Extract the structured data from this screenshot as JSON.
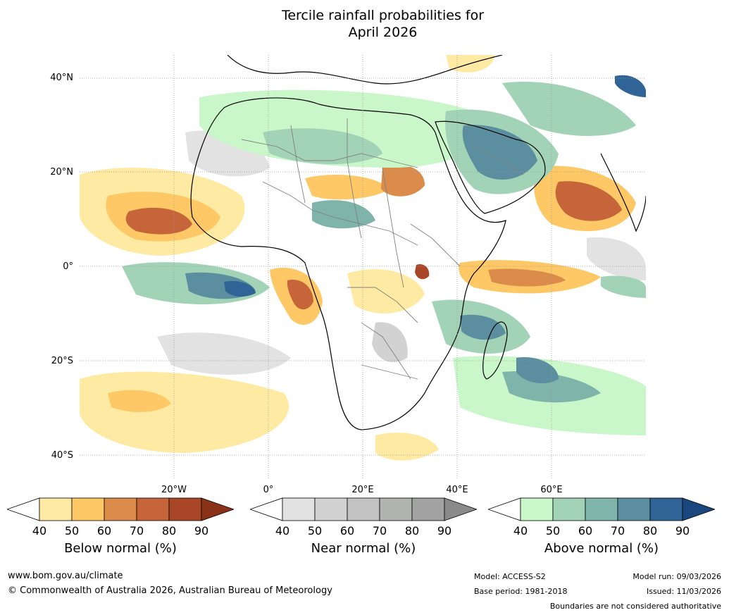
{
  "title": {
    "line1": "Tercile rainfall probabilities for",
    "line2": "April 2026"
  },
  "map": {
    "lat_labels": [
      "40°N",
      "20°N",
      "0°",
      "20°S",
      "40°S"
    ],
    "lon_labels": [
      "20°W",
      "0°",
      "20°E",
      "40°E",
      "60°E"
    ],
    "colors": {
      "ocean_background": "#ffffff",
      "coastline": "#000000",
      "borders": "#808080",
      "gridline": "#999999"
    }
  },
  "colorbars": {
    "below": {
      "label": "Below normal (%)",
      "ticks": [
        "40",
        "50",
        "60",
        "70",
        "80",
        "90"
      ],
      "colors": [
        "#ffffff",
        "#ffeaa3",
        "#fdc865",
        "#dc8c4a",
        "#c6643a",
        "#aa4628",
        "#8a3218"
      ]
    },
    "near": {
      "label": "Near normal (%)",
      "ticks": [
        "40",
        "50",
        "60",
        "70",
        "80",
        "90"
      ],
      "colors": [
        "#ffffff",
        "#e2e2e2",
        "#d2d2d2",
        "#c2c2c2",
        "#b2b4b2",
        "#a2a2a2",
        "#8a8a8a"
      ]
    },
    "above": {
      "label": "Above normal (%)",
      "ticks": [
        "40",
        "50",
        "60",
        "70",
        "80",
        "90"
      ],
      "colors": [
        "#ffffff",
        "#c9f7c9",
        "#a2d3b6",
        "#7eb4a9",
        "#5b8fa0",
        "#316496",
        "#1a477d"
      ]
    }
  },
  "footer": {
    "url": "www.bom.gov.au/climate",
    "copyright": "© Commonwealth of Australia 2026, Australian Bureau of Meteorology",
    "model": "Model: ACCESS-S2",
    "base_period": "Base period: 1981-2018",
    "model_run": "Model run: 09/03/2026",
    "issued": "Issued: 11/03/2026",
    "disclaimer": "Boundaries are not considered authoritative"
  }
}
